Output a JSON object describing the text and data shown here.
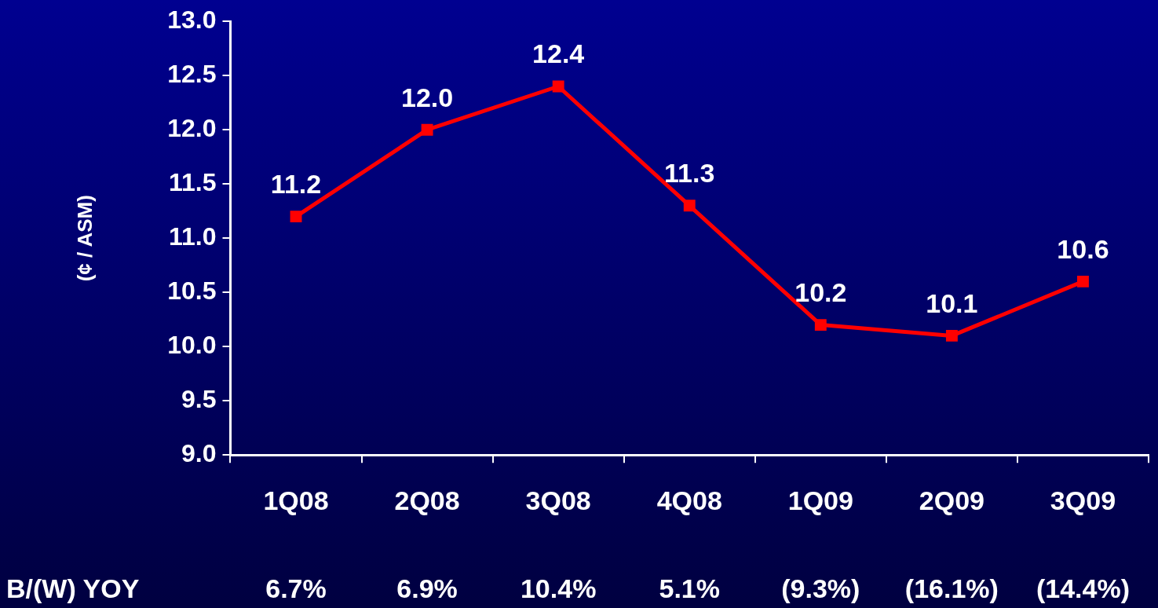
{
  "chart_data": {
    "type": "line",
    "ylabel": "(¢ / ASM)",
    "categories": [
      "1Q08",
      "2Q08",
      "3Q08",
      "4Q08",
      "1Q09",
      "2Q09",
      "3Q09"
    ],
    "series": [
      {
        "color": "#ff0000",
        "values": [
          11.2,
          12.0,
          12.4,
          11.3,
          10.2,
          10.1,
          10.6
        ],
        "value_labels": [
          "11.2",
          "12.0",
          "12.4",
          "11.3",
          "10.2",
          "10.1",
          "10.6"
        ]
      }
    ],
    "ylim": [
      9,
      13
    ],
    "yticks": [
      {
        "value": 9,
        "label": "9.0"
      },
      {
        "value": 9.5,
        "label": "9.5"
      },
      {
        "value": 10,
        "label": "10.0"
      },
      {
        "value": 10.5,
        "label": "10.5"
      },
      {
        "value": 11,
        "label": "11.0"
      },
      {
        "value": 11.5,
        "label": "11.5"
      },
      {
        "value": 12,
        "label": "12.0"
      },
      {
        "value": 12.5,
        "label": "12.5"
      },
      {
        "value": 13,
        "label": "13.0"
      }
    ],
    "grid": false,
    "legend": false,
    "marker": "square",
    "line_style": "solid",
    "annotations": [
      "B/(W) YOY",
      "6.7%",
      "6.9%",
      "10.4%",
      "5.1%",
      "(9.3%)",
      "(16.1%)",
      "(14.4%)"
    ]
  }
}
